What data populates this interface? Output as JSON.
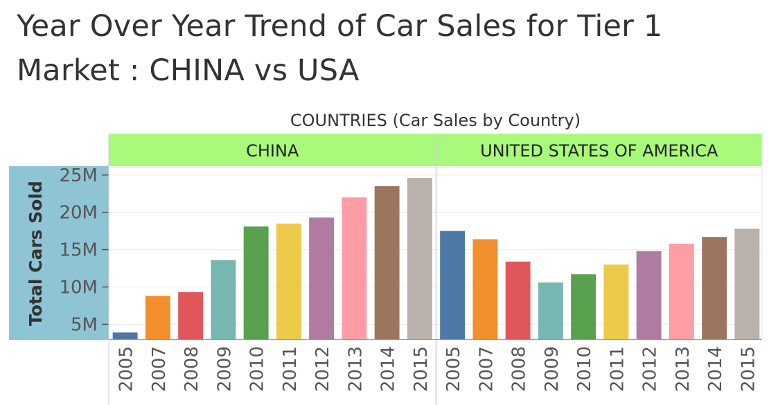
{
  "title_line1": "Year Over Year Trend of Car Sales for Tier 1",
  "title_line2": "Market : CHINA vs USA",
  "chart_data": {
    "type": "bar",
    "title": "Year Over Year Trend of Car Sales for Tier 1 Market : CHINA vs USA",
    "column_header": "COUNTRIES (Car Sales by Country)",
    "ylabel": "Total Cars Sold",
    "ylim": [
      3000000,
      26000000
    ],
    "yticks": [
      5000000,
      10000000,
      15000000,
      20000000,
      25000000
    ],
    "ytick_labels": [
      "5M",
      "10M",
      "15M",
      "20M",
      "25M"
    ],
    "grid": true,
    "categories": [
      "2005",
      "2007",
      "2008",
      "2009",
      "2010",
      "2011",
      "2012",
      "2013",
      "2014",
      "2015"
    ],
    "panels": [
      {
        "name": "CHINA",
        "values": [
          3900000,
          8800000,
          9300000,
          13600000,
          18100000,
          18500000,
          19300000,
          22000000,
          23500000,
          24600000
        ]
      },
      {
        "name": "UNITED STATES OF AMERICA",
        "values": [
          17500000,
          16400000,
          13400000,
          10600000,
          11700000,
          13000000,
          14800000,
          15800000,
          16700000,
          17800000
        ]
      }
    ],
    "colors": [
      "#4e79a7",
      "#f28e2b",
      "#e15759",
      "#76b7b2",
      "#59a14f",
      "#edc948",
      "#b07aa1",
      "#ff9da7",
      "#9c755f",
      "#bab0ac"
    ],
    "header_color": "#a9fa7a",
    "axis_panel_color": "#8fc4d4"
  }
}
